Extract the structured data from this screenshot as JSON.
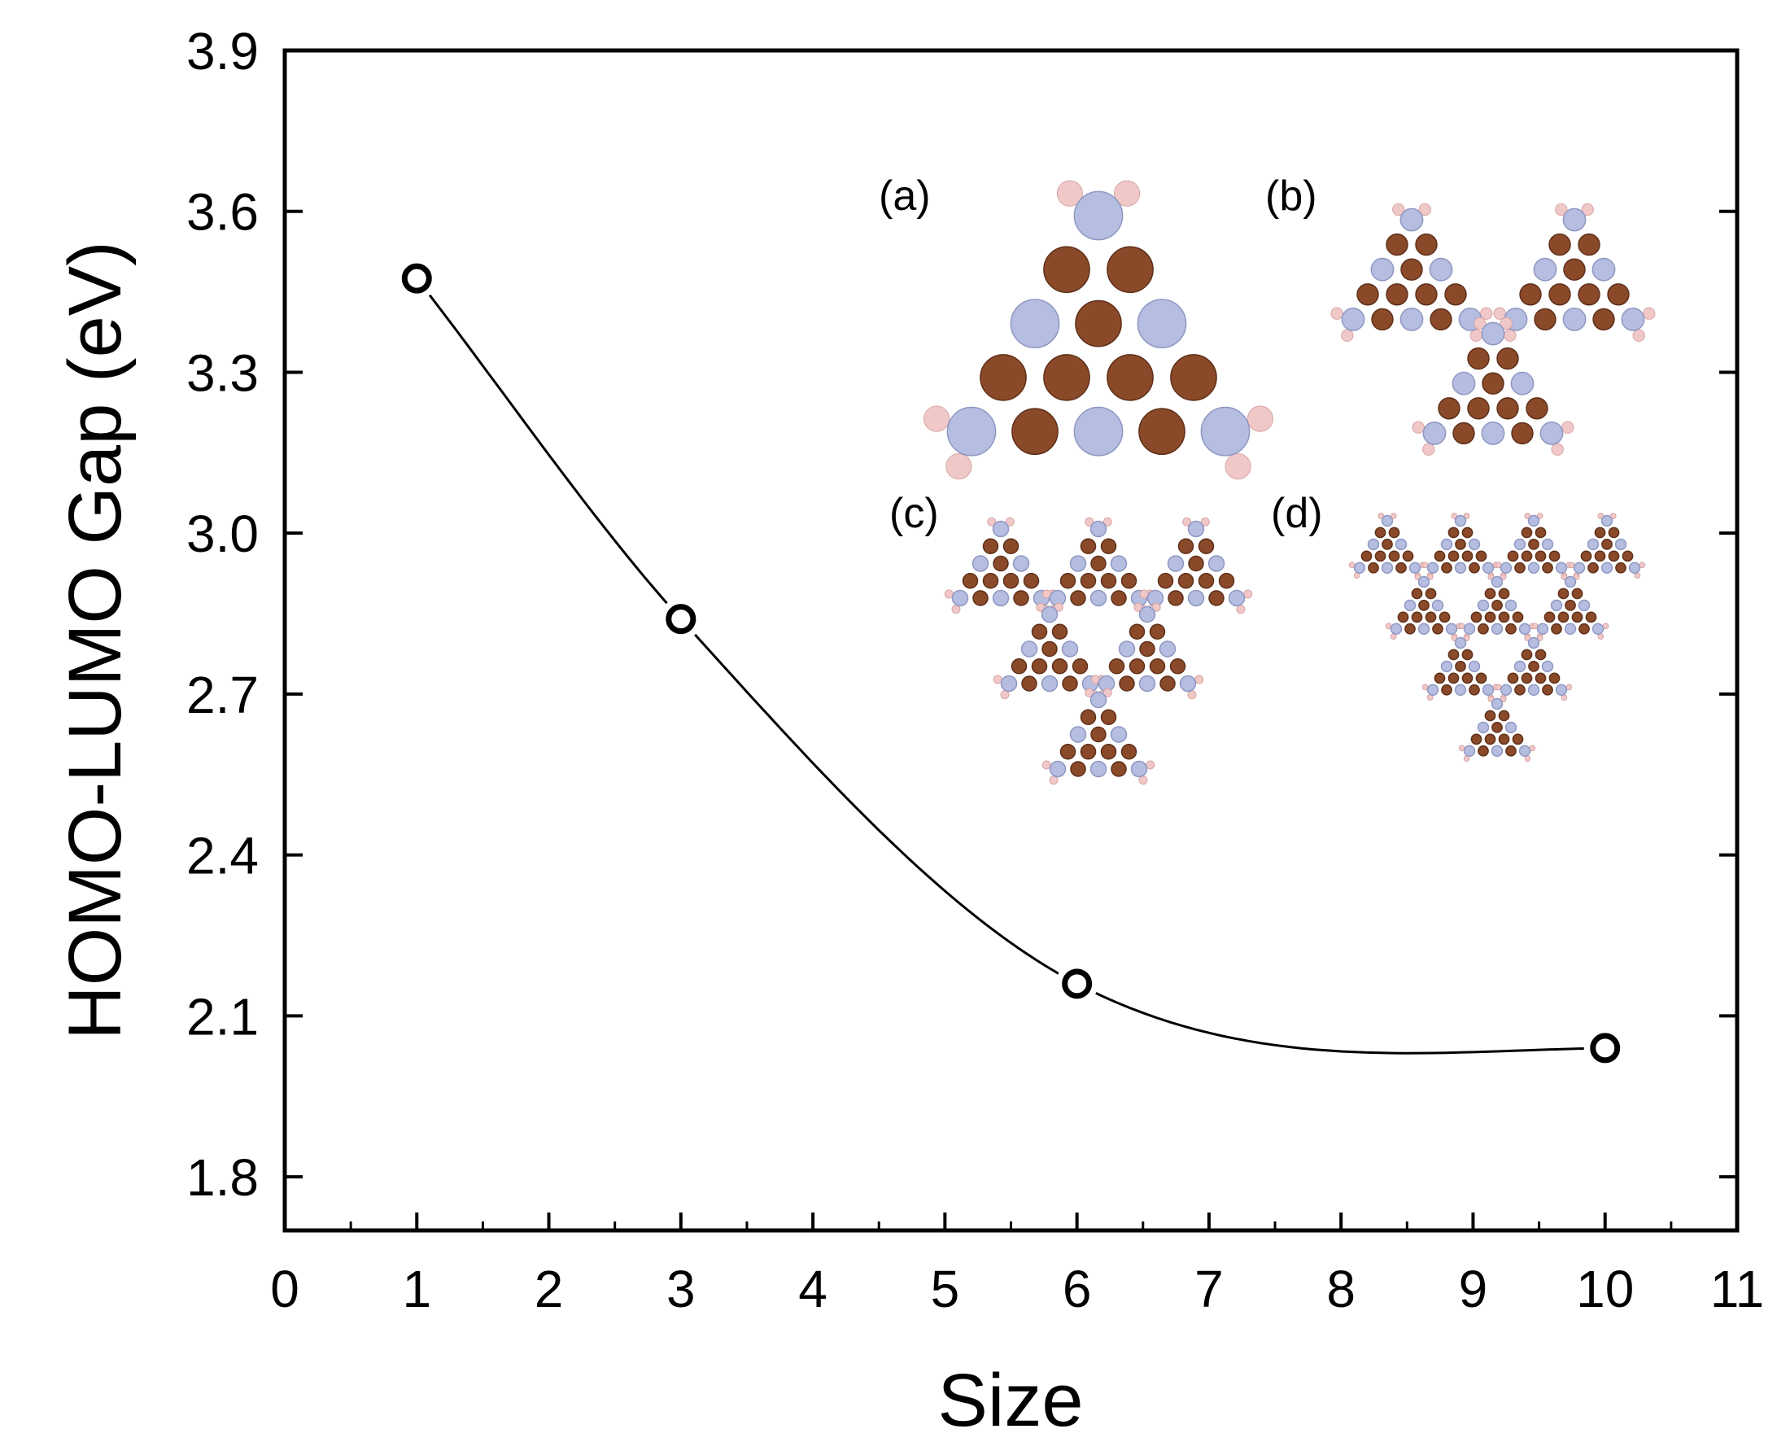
{
  "chart_data": {
    "type": "line",
    "xlabel": "Size",
    "ylabel": "HOMO-LUMO Gap (eV)",
    "xlim": [
      0,
      11
    ],
    "ylim": [
      1.7,
      3.9
    ],
    "x_ticks": [
      "0",
      "1",
      "2",
      "3",
      "4",
      "5",
      "6",
      "7",
      "8",
      "9",
      "10",
      "11"
    ],
    "y_ticks": [
      "1.8",
      "2.1",
      "2.4",
      "2.7",
      "3.0",
      "3.3",
      "3.6",
      "3.9"
    ],
    "series": [
      {
        "x": [
          1,
          3,
          6,
          10
        ],
        "values": [
          3.475,
          2.84,
          2.16,
          2.04
        ],
        "marker": "open-circle",
        "line": "smooth-fit"
      }
    ],
    "insets": [
      {
        "label": "(a)",
        "depicts": "sierpinski-triangle-molecule-size-1"
      },
      {
        "label": "(b)",
        "depicts": "sierpinski-triangle-molecule-size-3"
      },
      {
        "label": "(c)",
        "depicts": "sierpinski-triangle-molecule-size-6"
      },
      {
        "label": "(d)",
        "depicts": "sierpinski-triangle-molecule-size-10"
      }
    ],
    "atom_colors": {
      "carbon": "#b5bde0",
      "nitrogen": "#8a4a2a",
      "hydrogen": "#f1c8c8"
    },
    "grid": false,
    "legend": "none"
  }
}
